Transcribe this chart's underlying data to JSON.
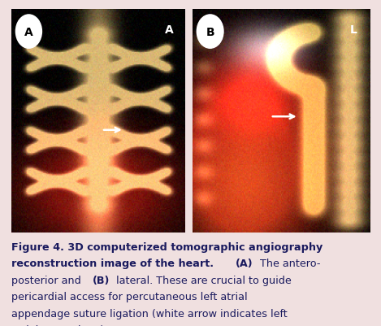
{
  "background_color": "#f0e0e0",
  "panel_a_label_circle": "A",
  "panel_b_label_circle": "B",
  "panel_a_corner": "A",
  "panel_b_corner": "L",
  "label_color": "#ffffff",
  "label_fontsize": 10,
  "caption_color": "#1a1a5e",
  "caption_fontsize": 9.2,
  "fig_width": 4.69,
  "fig_height": 4.02,
  "dpi": 100
}
